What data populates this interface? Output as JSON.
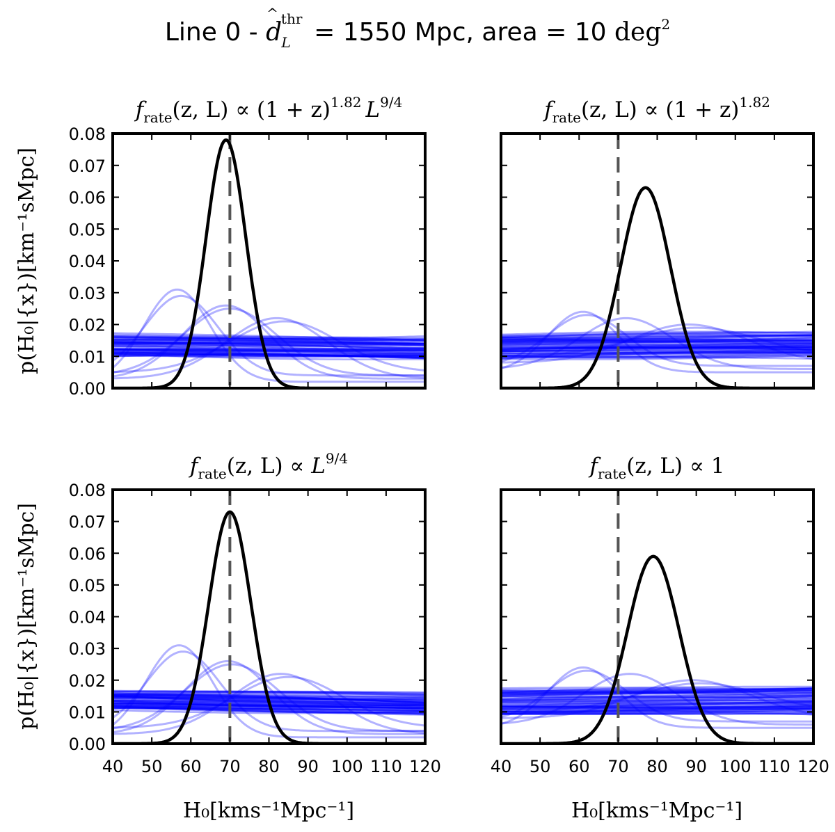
{
  "figure": {
    "suptitle_prefix": "Line 0 - ",
    "suptitle_symbol": "d",
    "suptitle_hat": "^",
    "suptitle_sup": "thr",
    "suptitle_sub": "L",
    "suptitle_mid": " = 1550 Mpc, area = 10 ",
    "suptitle_unit": "deg",
    "suptitle_unit_sup": "2",
    "ylabel": "p(H₀|{x})[km⁻¹sMpc]",
    "xlabel": "H₀[kms⁻¹Mpc⁻¹]"
  },
  "chart_data": [
    {
      "type": "line",
      "title": "f_rate(z,L) ∝ (1+z)^1.82 L^9/4",
      "title_parts": {
        "f": "f",
        "sub": "rate",
        "args": "(z, L) ∝ (1 + z)",
        "sup1": "1.82",
        "tail": "L",
        "sup2": "9/4"
      },
      "xlabel": "",
      "ylabel": "p(H₀|{x})[km⁻¹sMpc]",
      "xlim": [
        40,
        120
      ],
      "ylim": [
        0,
        0.08
      ],
      "yticks": [
        "0.00",
        "0.01",
        "0.02",
        "0.03",
        "0.04",
        "0.05",
        "0.06",
        "0.07",
        "0.08"
      ],
      "xticks": [],
      "reference_line": {
        "x": 70,
        "style": "dashed",
        "color": "#555555"
      },
      "combined_posterior": {
        "shape": "gaussian",
        "mean": 69,
        "sd": 5.1,
        "peak": 0.078,
        "color": "#000000"
      },
      "individual_posteriors": {
        "color": "#0000ff",
        "bumps": [
          {
            "mean": 56.5,
            "sd": 8.5,
            "peak": 0.031,
            "base": 0.002
          },
          {
            "mean": 57.5,
            "sd": 9.5,
            "peak": 0.029,
            "base": 0.004
          },
          {
            "mean": 69,
            "sd": 11,
            "peak": 0.026,
            "base": 0.003
          },
          {
            "mean": 70,
            "sd": 12,
            "peak": 0.025,
            "base": 0.004
          },
          {
            "mean": 82,
            "sd": 13,
            "peak": 0.022,
            "base": 0.003
          },
          {
            "mean": 84,
            "sd": 14,
            "peak": 0.021,
            "base": 0.005
          }
        ],
        "flat_band": {
          "start": 0.0135,
          "end": 0.0125,
          "count": 60,
          "spread": 0.0032
        }
      }
    },
    {
      "type": "line",
      "title": "f_rate(z,L) ∝ (1+z)^1.82",
      "title_parts": {
        "f": "f",
        "sub": "rate",
        "args": "(z, L) ∝ (1 + z)",
        "sup1": "1.82",
        "tail": "",
        "sup2": ""
      },
      "xlabel": "",
      "ylabel": "",
      "xlim": [
        40,
        120
      ],
      "ylim": [
        0,
        0.08
      ],
      "yticks": [],
      "xticks": [],
      "reference_line": {
        "x": 70,
        "style": "dashed",
        "color": "#555555"
      },
      "combined_posterior": {
        "shape": "gaussian",
        "mean": 77,
        "sd": 6.4,
        "peak": 0.063,
        "color": "#000000"
      },
      "individual_posteriors": {
        "color": "#0000ff",
        "bumps": [
          {
            "mean": 61,
            "sd": 9,
            "peak": 0.024,
            "base": 0.005
          },
          {
            "mean": 62,
            "sd": 10,
            "peak": 0.023,
            "base": 0.007
          },
          {
            "mean": 72,
            "sd": 12,
            "peak": 0.022,
            "base": 0.006
          },
          {
            "mean": 88,
            "sd": 15,
            "peak": 0.02,
            "base": 0.008
          },
          {
            "mean": 90,
            "sd": 16,
            "peak": 0.019,
            "base": 0.01
          }
        ],
        "flat_band": {
          "start": 0.013,
          "end": 0.0135,
          "count": 60,
          "spread": 0.004
        }
      }
    },
    {
      "type": "line",
      "title": "f_rate(z,L) ∝ L^9/4",
      "title_parts": {
        "f": "f",
        "sub": "rate",
        "args": "(z, L) ∝ ",
        "sup1": "",
        "tail": "L",
        "sup2": "9/4"
      },
      "xlabel": "H₀[kms⁻¹Mpc⁻¹]",
      "ylabel": "p(H₀|{x})[km⁻¹sMpc]",
      "xlim": [
        40,
        120
      ],
      "ylim": [
        0,
        0.08
      ],
      "yticks": [
        "0.00",
        "0.01",
        "0.02",
        "0.03",
        "0.04",
        "0.05",
        "0.06",
        "0.07",
        "0.08"
      ],
      "xticks": [
        "40",
        "50",
        "60",
        "70",
        "80",
        "90",
        "100",
        "110",
        "120"
      ],
      "reference_line": {
        "x": 70,
        "style": "dashed",
        "color": "#555555"
      },
      "combined_posterior": {
        "shape": "gaussian",
        "mean": 70,
        "sd": 5.4,
        "peak": 0.073,
        "color": "#000000"
      },
      "individual_posteriors": {
        "color": "#0000ff",
        "bumps": [
          {
            "mean": 57,
            "sd": 8.5,
            "peak": 0.031,
            "base": 0.002
          },
          {
            "mean": 58,
            "sd": 9.5,
            "peak": 0.029,
            "base": 0.004
          },
          {
            "mean": 69.5,
            "sd": 11,
            "peak": 0.026,
            "base": 0.003
          },
          {
            "mean": 70.5,
            "sd": 12,
            "peak": 0.025,
            "base": 0.004
          },
          {
            "mean": 83,
            "sd": 13,
            "peak": 0.022,
            "base": 0.003
          },
          {
            "mean": 85,
            "sd": 14,
            "peak": 0.021,
            "base": 0.005
          }
        ],
        "flat_band": {
          "start": 0.014,
          "end": 0.0125,
          "count": 60,
          "spread": 0.003
        }
      }
    },
    {
      "type": "line",
      "title": "f_rate(z,L) ∝ 1",
      "title_parts": {
        "f": "f",
        "sub": "rate",
        "args": "(z, L) ∝ 1",
        "sup1": "",
        "tail": "",
        "sup2": ""
      },
      "xlabel": "H₀[kms⁻¹Mpc⁻¹]",
      "ylabel": "",
      "xlim": [
        40,
        120
      ],
      "ylim": [
        0,
        0.08
      ],
      "yticks": [],
      "xticks": [
        "40",
        "50",
        "60",
        "70",
        "80",
        "90",
        "100",
        "110",
        "120"
      ],
      "reference_line": {
        "x": 70,
        "style": "dashed",
        "color": "#555555"
      },
      "combined_posterior": {
        "shape": "gaussian",
        "mean": 79,
        "sd": 6.6,
        "peak": 0.059,
        "color": "#000000"
      },
      "individual_posteriors": {
        "color": "#0000ff",
        "bumps": [
          {
            "mean": 61,
            "sd": 9,
            "peak": 0.024,
            "base": 0.005
          },
          {
            "mean": 62,
            "sd": 10,
            "peak": 0.023,
            "base": 0.007
          },
          {
            "mean": 73,
            "sd": 12,
            "peak": 0.022,
            "base": 0.006
          },
          {
            "mean": 89,
            "sd": 15,
            "peak": 0.02,
            "base": 0.008
          },
          {
            "mean": 91,
            "sd": 16,
            "peak": 0.019,
            "base": 0.01
          }
        ],
        "flat_band": {
          "start": 0.013,
          "end": 0.0135,
          "count": 60,
          "spread": 0.004
        }
      }
    }
  ]
}
